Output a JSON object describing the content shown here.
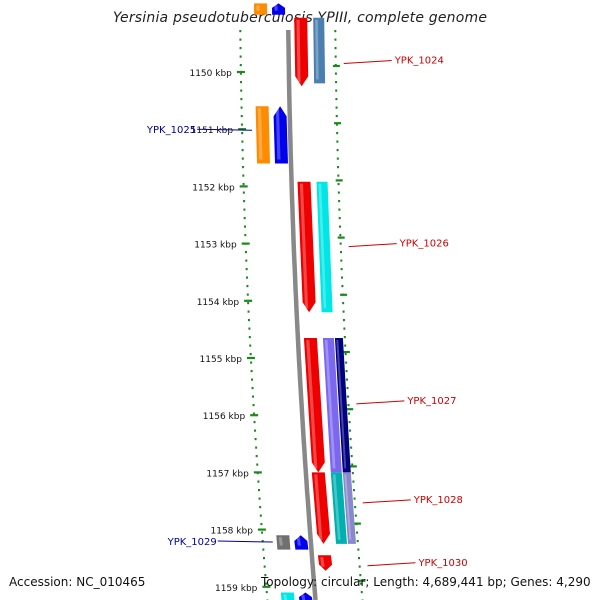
{
  "title": "Yersinia pseudotuberculosis YPIII, complete genome",
  "footer": {
    "accession": "Accession: NC_010465",
    "summary": "Topology: circular; Length: 4,689,441 bp; Genes: 4,290"
  },
  "ruler": [
    {
      "label": "1150 kbp",
      "kbp": 1150
    },
    {
      "label": "1151 kbp",
      "kbp": 1151
    },
    {
      "label": "1152 kbp",
      "kbp": 1152
    },
    {
      "label": "1153 kbp",
      "kbp": 1153
    },
    {
      "label": "1154 kbp",
      "kbp": 1154
    },
    {
      "label": "1155 kbp",
      "kbp": 1155
    },
    {
      "label": "1156 kbp",
      "kbp": 1156
    },
    {
      "label": "1157 kbp",
      "kbp": 1157
    },
    {
      "label": "1158 kbp",
      "kbp": 1158
    },
    {
      "label": "1159 kbp",
      "kbp": 1159
    }
  ],
  "gene_labels": [
    {
      "name": "YPK_1024",
      "strand": "reverse",
      "kbp": 1149.8,
      "color": "#cc0000"
    },
    {
      "name": "YPK_1025",
      "strand": "forward",
      "kbp": 1151.0,
      "color": "#000099"
    },
    {
      "name": "YPK_1026",
      "strand": "reverse",
      "kbp": 1153.0,
      "color": "#cc0000"
    },
    {
      "name": "YPK_1027",
      "strand": "reverse",
      "kbp": 1155.75,
      "color": "#cc0000"
    },
    {
      "name": "YPK_1028",
      "strand": "reverse",
      "kbp": 1157.48,
      "color": "#cc0000"
    },
    {
      "name": "YPK_1029",
      "strand": "forward",
      "kbp": 1158.2,
      "color": "#000099"
    },
    {
      "name": "YPK_1030",
      "strand": "reverse",
      "kbp": 1158.58,
      "color": "#cc0000"
    }
  ],
  "features": [
    {
      "track": "fwd_cog",
      "start": 1148.8,
      "end": 1149.0,
      "color": "#ff8c00"
    },
    {
      "track": "fwd_cds",
      "start": 1148.8,
      "end": 1149.0,
      "color": "#0000ee"
    },
    {
      "track": "rev_cds",
      "start": 1149.05,
      "end": 1150.25,
      "color": "#ee0000"
    },
    {
      "track": "rev_cog",
      "start": 1149.05,
      "end": 1150.2,
      "color": "#4a7fb0"
    },
    {
      "track": "fwd_cog",
      "start": 1150.6,
      "end": 1151.6,
      "color": "#ff8c00"
    },
    {
      "track": "fwd_cds",
      "start": 1150.6,
      "end": 1151.6,
      "color": "#0000ee"
    },
    {
      "track": "rev_cds",
      "start": 1151.92,
      "end": 1154.2,
      "color": "#ee0000"
    },
    {
      "track": "rev_cog",
      "start": 1151.92,
      "end": 1154.2,
      "color": "#00e5e5"
    },
    {
      "track": "rev_cds",
      "start": 1154.65,
      "end": 1157.0,
      "color": "#ee0000"
    },
    {
      "track": "rev_cog",
      "start": 1154.65,
      "end": 1157.0,
      "color": "#7b68ee"
    },
    {
      "track": "rev_cog2",
      "start": 1154.65,
      "end": 1157.0,
      "color": "#000080"
    },
    {
      "track": "rev_cds",
      "start": 1157.0,
      "end": 1158.25,
      "color": "#ee0000"
    },
    {
      "track": "rev_cog",
      "start": 1157.0,
      "end": 1158.25,
      "color": "#00b0b0"
    },
    {
      "track": "rev_cog2",
      "start": 1157.0,
      "end": 1158.25,
      "color": "#8888cc"
    },
    {
      "track": "fwd_cog",
      "start": 1158.1,
      "end": 1158.35,
      "color": "#707070"
    },
    {
      "track": "fwd_cds",
      "start": 1158.1,
      "end": 1158.35,
      "color": "#0000ee"
    },
    {
      "track": "rev_cds",
      "start": 1158.45,
      "end": 1158.72,
      "color": "#ee0000"
    },
    {
      "track": "fwd_cog",
      "start": 1159.1,
      "end": 1159.3,
      "color": "#00e5e5"
    },
    {
      "track": "fwd_cds",
      "start": 1159.1,
      "end": 1159.3,
      "color": "#0000ee"
    }
  ]
}
